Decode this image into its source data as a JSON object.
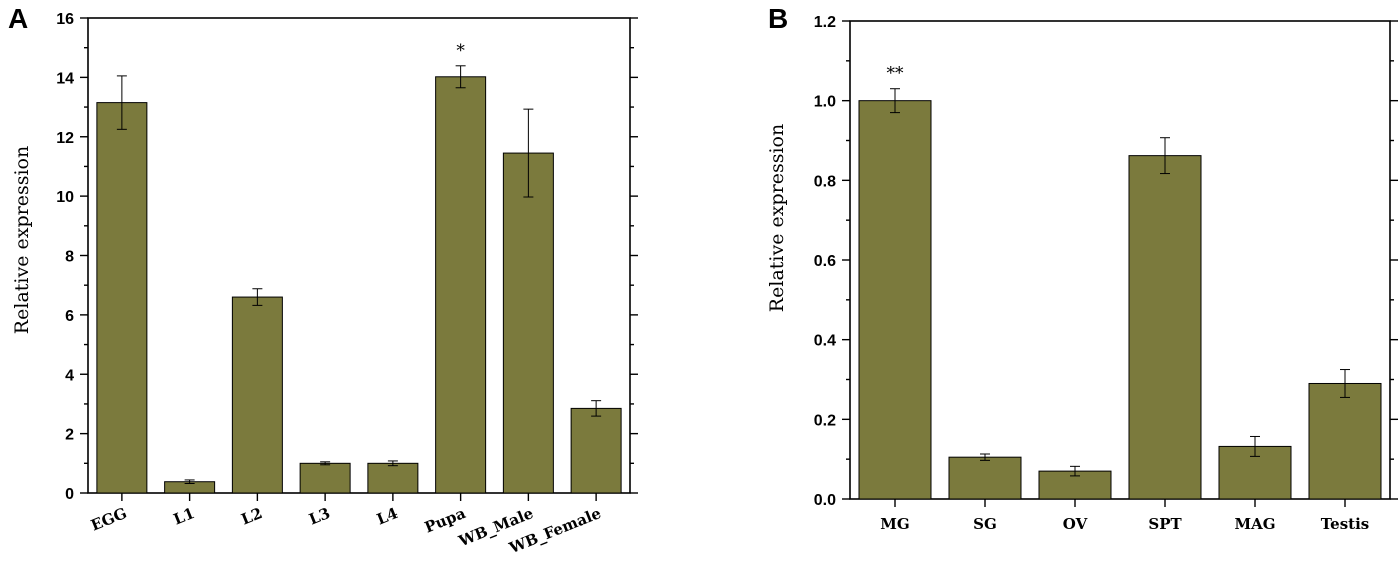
{
  "chart_data": [
    {
      "panel": "A",
      "type": "bar",
      "ylabel": "Relative expression",
      "xlabel": "",
      "ylim": [
        0,
        16
      ],
      "yticks": [
        0,
        2,
        4,
        6,
        8,
        10,
        12,
        14,
        16
      ],
      "ytick_labels": [
        "0",
        "2",
        "4",
        "6",
        "8",
        "10",
        "12",
        "14",
        "16"
      ],
      "x_tick_rotation": "angled",
      "categories": [
        "EGG",
        "L1",
        "L2",
        "L3",
        "L4",
        "Pupa",
        "WB_Male",
        "WB_Female"
      ],
      "values": [
        13.15,
        0.38,
        6.6,
        1.0,
        1.0,
        14.02,
        11.45,
        2.85
      ],
      "errors": [
        0.9,
        0.06,
        0.28,
        0.05,
        0.08,
        0.37,
        1.48,
        0.26
      ],
      "significance": [
        "",
        "",
        "",
        "",
        "",
        "*",
        "",
        ""
      ],
      "bar_color": "#7b7a3d"
    },
    {
      "panel": "B",
      "type": "bar",
      "ylabel": "Relative expression",
      "xlabel": "",
      "ylim": [
        0,
        1.2
      ],
      "yticks": [
        0,
        0.2,
        0.4,
        0.6,
        0.8,
        1.0,
        1.2
      ],
      "ytick_labels": [
        "0.0",
        "0.2",
        "0.4",
        "0.6",
        "0.8",
        "1.0",
        "1.2"
      ],
      "x_tick_rotation": "horizontal",
      "categories": [
        "MG",
        "SG",
        "OV",
        "SPT",
        "MAG",
        "Testis"
      ],
      "values": [
        1.0,
        0.105,
        0.07,
        0.862,
        0.132,
        0.29
      ],
      "errors": [
        0.03,
        0.008,
        0.012,
        0.045,
        0.025,
        0.035
      ],
      "significance": [
        "**",
        "",
        "",
        "",
        "",
        ""
      ],
      "bar_color": "#7b7a3d"
    }
  ]
}
